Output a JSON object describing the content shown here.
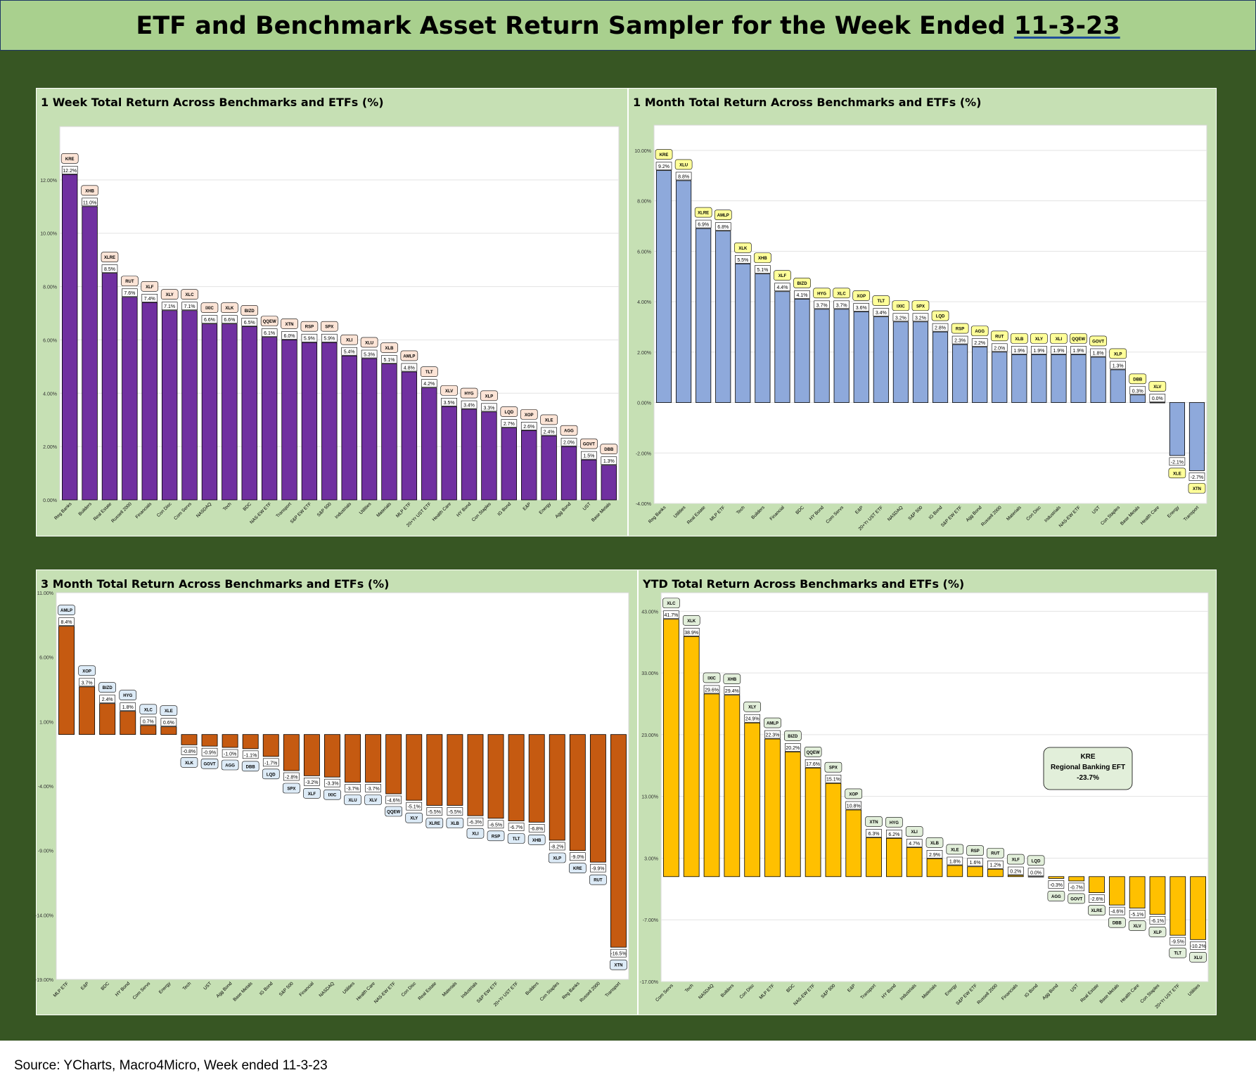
{
  "title": {
    "main": "ETF and Benchmark Asset Return Sampler for the Week Ended ",
    "date": "11-3-23"
  },
  "source": "Source: YCharts, Macro4Micro, Week ended 11-3-23",
  "chart_data": [
    {
      "type": "bar",
      "title": "1 Week Total Return Across Benchmarks and ETFs (%)",
      "ylim": [
        0,
        14
      ],
      "yticks": [
        0,
        2,
        4,
        6,
        8,
        10,
        12
      ],
      "grid": true,
      "bar_color": "#7030a0",
      "tag_color": "#fce4d6",
      "categories": [
        "Reg Banks",
        "Builders",
        "Real Estate",
        "Russell 2000",
        "Financials",
        "Con Disc",
        "Com Servs",
        "NASDAQ",
        "Tech",
        "BDC",
        "NAS-EW ETF",
        "Transport",
        "S&P EW ETF",
        "S&P 500",
        "Industrials",
        "Utilities",
        "Materials",
        "MLP ETF",
        "20+Yr UST ETF",
        "Health Care",
        "HY Bond",
        "Con Staples",
        "IG Bond",
        "E&P",
        "Energy",
        "Agg Bond",
        "UST",
        "Base Metals"
      ],
      "tickers": [
        "KRE",
        "XHB",
        "XLRE",
        "RUT",
        "XLF",
        "XLY",
        "XLC",
        "IXIC",
        "XLK",
        "BIZD",
        "QQEW",
        "XTN",
        "RSP",
        "SPX",
        "XLI",
        "XLU",
        "XLB",
        "AMLP",
        "TLT",
        "XLV",
        "HYG",
        "XLP",
        "LQD",
        "XOP",
        "XLE",
        "AGG",
        "GOVT",
        "DBB"
      ],
      "values": [
        12.2,
        11.0,
        8.5,
        7.6,
        7.4,
        7.1,
        7.1,
        6.6,
        6.6,
        6.5,
        6.1,
        6.0,
        5.9,
        5.9,
        5.4,
        5.3,
        5.1,
        4.8,
        4.2,
        3.5,
        3.4,
        3.3,
        2.7,
        2.6,
        2.4,
        2.0,
        1.5,
        1.3
      ]
    },
    {
      "type": "bar",
      "title": "1 Month Total Return Across Benchmarks and ETFs (%)",
      "ylim": [
        -4,
        11
      ],
      "yticks": [
        -4,
        -2,
        0,
        2,
        4,
        6,
        8,
        10
      ],
      "grid": true,
      "bar_color": "#8ea9db",
      "tag_color": "#ffff99",
      "categories": [
        "Reg Banks",
        "Utilities",
        "Real Estate",
        "MLP ETF",
        "Tech",
        "Builders",
        "Financial",
        "BDC",
        "HY Bond",
        "Com Servs",
        "E&P",
        "20+Yr UST ETF",
        "NASDAQ",
        "S&P 500",
        "IG Bond",
        "S&P EW ETF",
        "Agg Bond",
        "Russell 2000",
        "Materials",
        "Con Disc",
        "Industrials",
        "NAS-EW ETF",
        "UST",
        "Con Staples",
        "Base Metals",
        "Health Care",
        "Energy",
        "Transport"
      ],
      "tickers": [
        "KRE",
        "XLU",
        "XLRE",
        "AMLP",
        "XLK",
        "XHB",
        "XLF",
        "BIZD",
        "HYG",
        "XLC",
        "XOP",
        "TLT",
        "IXIC",
        "SPX",
        "LQD",
        "RSP",
        "AGG",
        "RUT",
        "XLB",
        "XLY",
        "XLI",
        "QQEW",
        "GOVT",
        "XLP",
        "DBB",
        "XLV",
        "XLE",
        "XTN"
      ],
      "values": [
        9.2,
        8.8,
        6.9,
        6.8,
        5.5,
        5.1,
        4.4,
        4.1,
        3.7,
        3.7,
        3.6,
        3.4,
        3.2,
        3.2,
        2.8,
        2.3,
        2.2,
        2.0,
        1.9,
        1.9,
        1.9,
        1.9,
        1.8,
        1.3,
        0.3,
        0.0,
        -2.1,
        -2.7
      ]
    },
    {
      "type": "bar",
      "title": "3 Month Total Return Across Benchmarks and ETFs (%)",
      "ylim": [
        -19,
        11
      ],
      "yticks": [
        -19,
        -14,
        -9,
        -4,
        1,
        6,
        11
      ],
      "grid": false,
      "bar_color": "#c55a11",
      "tag_color": "#ddebf7",
      "categories": [
        "MLP ETF",
        "E&P",
        "BDC",
        "HY Bond",
        "Com Servs",
        "Energy",
        "Tech",
        "UST",
        "Agg Bond",
        "Base Metals",
        "IG Bond",
        "S&P 500",
        "Financial",
        "NASDAQ",
        "Utilities",
        "Health Care",
        "NAS-EW ETF",
        "Con Disc",
        "Real Estate",
        "Materials",
        "Industrials",
        "S&P EW ETF",
        "20+Yr UST ETF",
        "Builders",
        "Con Staples",
        "Reg Banks",
        "Russell 2000",
        "Transport"
      ],
      "tickers": [
        "AMLP",
        "XOP",
        "BIZD",
        "HYG",
        "XLC",
        "XLE",
        "XLK",
        "GOVT",
        "AGG",
        "DBB",
        "LQD",
        "SPX",
        "XLF",
        "IXIC",
        "XLU",
        "XLV",
        "QQEW",
        "XLY",
        "XLRE",
        "XLB",
        "XLI",
        "RSP",
        "TLT",
        "XHB",
        "XLP",
        "KRE",
        "RUT",
        "XTN"
      ],
      "values": [
        8.4,
        3.7,
        2.4,
        1.8,
        0.7,
        0.6,
        -0.8,
        -0.9,
        -1.0,
        -1.1,
        -1.7,
        -2.8,
        -3.2,
        -3.3,
        -3.7,
        -3.7,
        -4.6,
        -5.1,
        -5.5,
        -5.5,
        -6.3,
        -6.5,
        -6.7,
        -6.8,
        -8.2,
        -9.0,
        -9.9,
        -16.5
      ]
    },
    {
      "type": "bar",
      "title": "YTD Total Return Across Benchmarks and ETFs (%)",
      "ylim": [
        -17,
        46
      ],
      "yticks": [
        -17,
        -7,
        3,
        13,
        23,
        33,
        43
      ],
      "grid": true,
      "bar_color": "#ffc000",
      "tag_color": "#e2efda",
      "categories": [
        "Com Servs",
        "Tech",
        "NASDAQ",
        "Builders",
        "Con Disc",
        "MLP ETF",
        "BDC",
        "NAS-EW ETF",
        "S&P 500",
        "E&P",
        "Transport",
        "HY Bond",
        "Industrials",
        "Materials",
        "Energy",
        "S&P EW ETF",
        "Russell 2000",
        "Financials",
        "IG Bond",
        "Agg Bond",
        "UST",
        "Real Estate",
        "Base Metals",
        "Health Care",
        "Con Staples",
        "20+Yr UST ETF",
        "Utilities"
      ],
      "tickers": [
        "XLC",
        "XLK",
        "IXIC",
        "XHB",
        "XLY",
        "AMLP",
        "BIZD",
        "QQEW",
        "SPX",
        "XOP",
        "XTN",
        "HYG",
        "XLI",
        "XLB",
        "XLE",
        "RSP",
        "RUT",
        "XLF",
        "LQD",
        "AGG",
        "GOVT",
        "XLRE",
        "DBB",
        "XLV",
        "XLP",
        "TLT",
        "XLU"
      ],
      "values": [
        41.7,
        38.9,
        29.6,
        29.4,
        24.9,
        22.3,
        20.2,
        17.6,
        15.1,
        10.8,
        6.3,
        6.2,
        4.7,
        2.9,
        1.8,
        1.6,
        1.2,
        0.2,
        0.0,
        -0.3,
        -0.7,
        -2.6,
        -4.6,
        -5.1,
        -6.1,
        -9.5,
        -10.2
      ],
      "annotation": {
        "ticker": "KRE",
        "text": "Regional Banking EFT",
        "value": "-23.7%"
      }
    }
  ]
}
